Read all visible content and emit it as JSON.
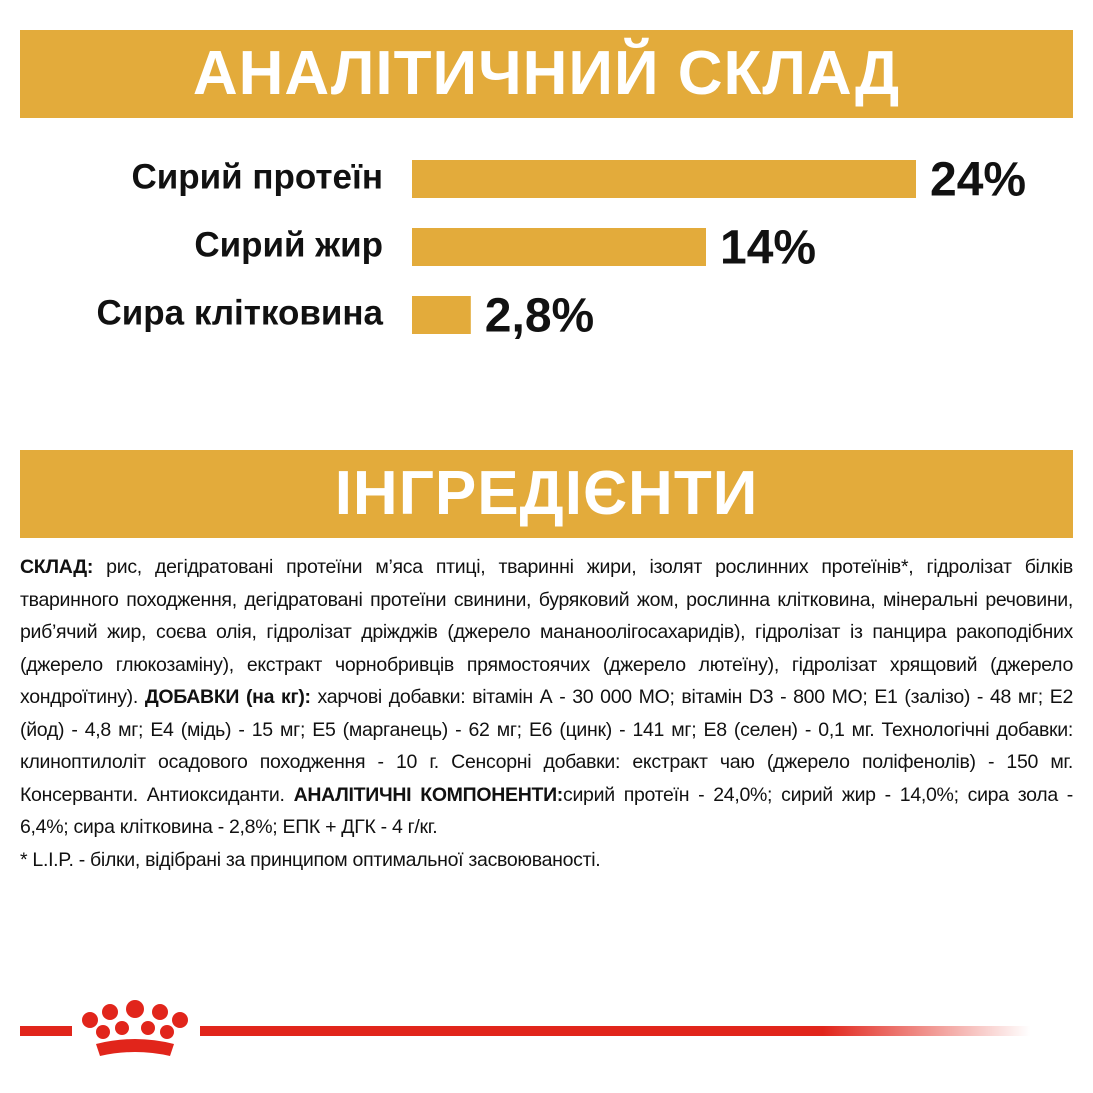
{
  "chart_data": {
    "type": "bar",
    "orientation": "horizontal",
    "title": "АНАЛІТИЧНИЙ СКЛАД",
    "categories": [
      "Сирий протеїн",
      "Сирий жир",
      "Сира клітковина"
    ],
    "values": [
      24,
      14,
      2.8
    ],
    "value_labels": [
      "24%",
      "14%",
      "2,8%"
    ],
    "color": "#e3ab3b"
  },
  "ingredients": {
    "title": "ІНГРЕДІЄНТИ",
    "text": [
      {
        "bold": true,
        "text": "СКЛАД:"
      },
      {
        "bold": false,
        "text": " рис, дегідратовані протеїни м’яса птиці, тваринні жири, ізолят рослинних протеїнів*, гідролізат білків тваринного походження, дегідратовані протеїни свинини, буряковий жом, рослинна клітковина, мінеральні речовини, риб’ячий жир, соєва олія, гідролізат дріжджів (джерело мананоолігосахаридів), гідролізат із панцира ракоподібних (джерело глюкозаміну), екстракт чорнобривців прямостоячих (джерело лютеїну), гідролізат хрящовий (джерело хондроїтину). "
      },
      {
        "bold": true,
        "text": "ДОБАВКИ (на кг):"
      },
      {
        "bold": false,
        "text": " харчові добавки: вітамін А - 30 000 МО; вітамін D3 - 800 МО; E1 (залізо) - 48 мг; E2 (йод) - 4,8 мг; E4 (мідь) - 15 мг; E5 (марганець) - 62 мг; E6 (цинк) - 141 мг; E8 (селен) - 0,1 мг. Технологічні добавки: клиноптилоліт осадового походження - 10 г. Сенсорні добавки: екстракт чаю (джерело поліфенолів) - 150 мг. Консерванти. Антиоксиданти. "
      },
      {
        "bold": true,
        "text": "АНАЛІТИЧНІ КОМПОНЕНТИ:"
      },
      {
        "bold": false,
        "text": "сирий протеїн - 24,0%; сирий жир - 14,0%; сира зола - 6,4%; сира клітковина - 2,8%; ЕПК + ДГК - 4 г/кг."
      }
    ],
    "footnote": "* L.I.P. - білки, відібрані за принципом оптимальної засвоюваності."
  }
}
